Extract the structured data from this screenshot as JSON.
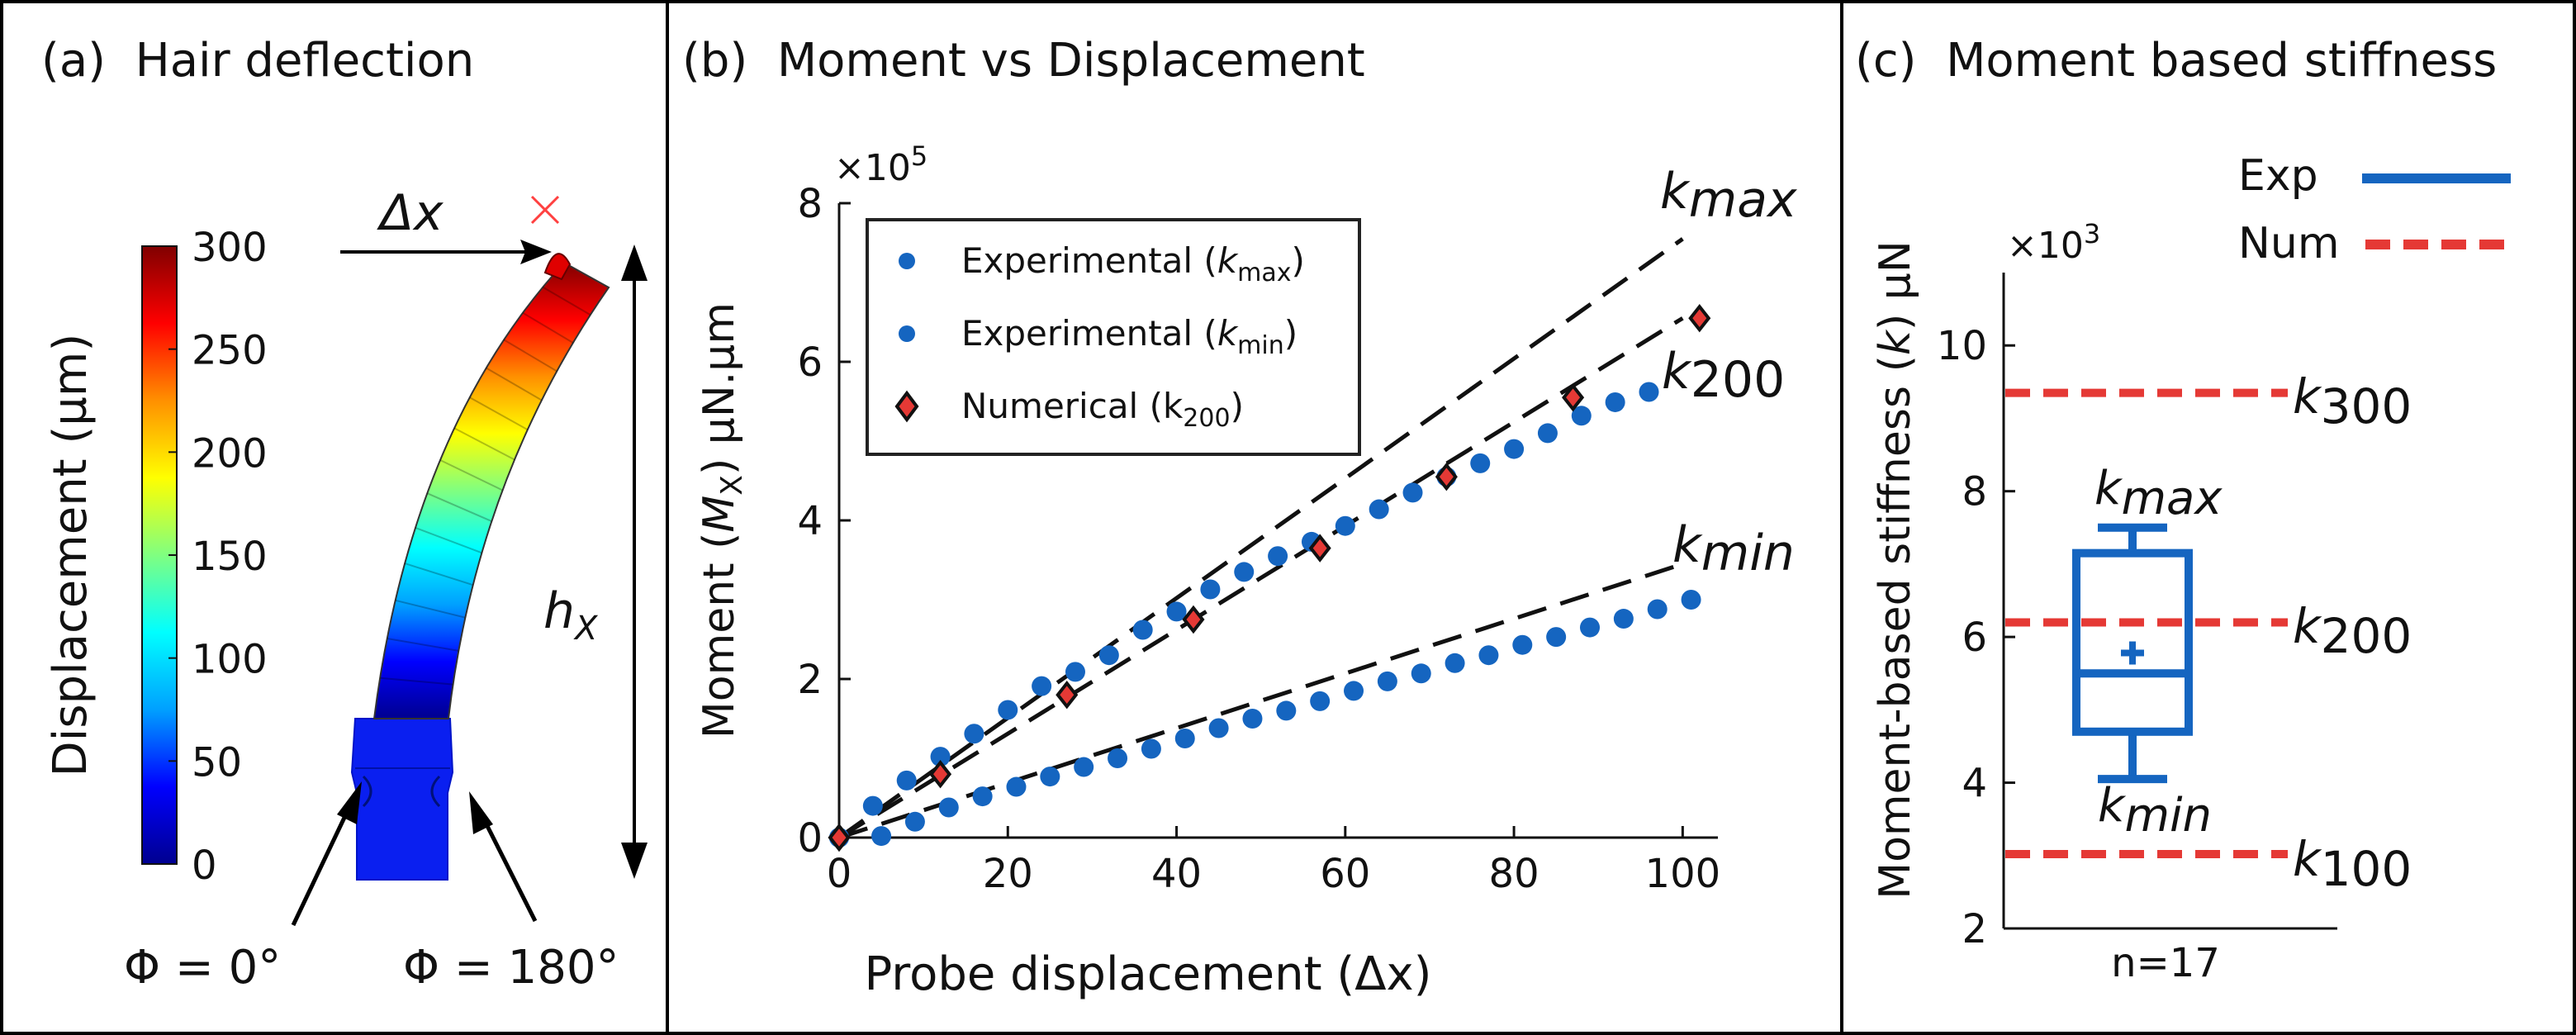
{
  "panel_a": {
    "title": "(a)  Hair deflection",
    "colorbar": {
      "label": "Displacement (µm)",
      "ticks": [
        "0",
        "50",
        "100",
        "150",
        "200",
        "250",
        "300"
      ],
      "min": 0,
      "max": 300,
      "colors": [
        "#00008f",
        "#0000ff",
        "#00a0ff",
        "#00ffff",
        "#80ff80",
        "#ffff00",
        "#ff9000",
        "#ff0000",
        "#800000"
      ]
    },
    "delta_x_label": "Δx",
    "h_label": "h",
    "h_sub": "X",
    "phi0_label": "Φ = 0°",
    "phi180_label": "Φ = 180°",
    "marker_color": "#ff4040"
  },
  "panel_b": {
    "title": "(b)  Moment vs Displacement",
    "exp_color": "#1565c0",
    "num_color": "#e53935",
    "legend_items": [
      {
        "prefix": "Experimental (",
        "sym": "k",
        "sub": "max",
        "suffix": ")"
      },
      {
        "prefix": "Experimental (",
        "sym": "k",
        "sub": "min",
        "suffix": ")"
      },
      {
        "prefix": "Numerical (k",
        "sym": "",
        "sub": "200",
        "suffix": ")"
      }
    ],
    "line_labels": [
      {
        "sym": "k",
        "sub": "max"
      },
      {
        "sym": "k",
        "sub": "200"
      },
      {
        "sym": "k",
        "sub": "min"
      }
    ]
  },
  "panel_c": {
    "title": "(c)  Moment based stiffness",
    "legend_exp": "Exp",
    "legend_num": "Num",
    "box_color": "#1565c0",
    "ref_color": "#e53935",
    "ref_labels": [
      {
        "sym": "k",
        "sub": "300"
      },
      {
        "sym": "k",
        "sub": "200"
      },
      {
        "sym": "k",
        "sub": "100"
      }
    ],
    "box_labels": [
      {
        "sym": "k",
        "sub": "max"
      },
      {
        "sym": "k",
        "sub": "min"
      }
    ]
  },
  "chart_data": [
    {
      "type": "scatter",
      "title": "Moment vs Displacement",
      "xlabel": "Probe displacement (Δx)",
      "ylabel_prefix": "Moment (",
      "ylabel_sym": "M",
      "ylabel_sub": "X",
      "ylabel_suffix": ") µN.µm",
      "multiplier": "×10",
      "multiplier_exp": "5",
      "xlim": [
        0,
        103
      ],
      "ylim": [
        0,
        8
      ],
      "xticks": [
        0,
        20,
        40,
        60,
        80,
        100
      ],
      "yticks": [
        0,
        2,
        4,
        6,
        8
      ],
      "series": [
        {
          "name": "Experimental (kmax)",
          "marker": "circle",
          "x": [
            0,
            4,
            8,
            12,
            16,
            20,
            24,
            28,
            32,
            36,
            40,
            44,
            48,
            52,
            56,
            60,
            64,
            68,
            72,
            76,
            80,
            84,
            88,
            92,
            96
          ],
          "y": [
            0.0,
            0.4,
            0.72,
            1.02,
            1.31,
            1.61,
            1.91,
            2.09,
            2.3,
            2.62,
            2.85,
            3.13,
            3.35,
            3.55,
            3.73,
            3.93,
            4.14,
            4.35,
            4.55,
            4.72,
            4.9,
            5.1,
            5.32,
            5.49,
            5.62
          ]
        },
        {
          "name": "Experimental (kmin)",
          "marker": "circle",
          "x": [
            0,
            5,
            9,
            13,
            17,
            21,
            25,
            29,
            33,
            37,
            41,
            45,
            49,
            53,
            57,
            61,
            65,
            69,
            73,
            77,
            81,
            85,
            89,
            93,
            97,
            101
          ],
          "y": [
            0.0,
            0.02,
            0.2,
            0.38,
            0.52,
            0.64,
            0.77,
            0.89,
            1.0,
            1.12,
            1.25,
            1.38,
            1.5,
            1.6,
            1.72,
            1.85,
            1.97,
            2.07,
            2.2,
            2.3,
            2.43,
            2.53,
            2.65,
            2.76,
            2.88,
            3.0
          ]
        },
        {
          "name": "Numerical (k200)",
          "marker": "diamond",
          "x": [
            0,
            12,
            27,
            42,
            57,
            72,
            87,
            102
          ],
          "y": [
            0.0,
            0.8,
            1.8,
            2.75,
            3.65,
            4.55,
            5.55,
            6.55
          ]
        },
        {
          "name": "kmax",
          "line": "dashed",
          "x": [
            0,
            100
          ],
          "y": [
            0.0,
            7.55
          ]
        },
        {
          "name": "k200",
          "line": "dashed",
          "x": [
            0,
            100
          ],
          "y": [
            0.0,
            6.55
          ]
        },
        {
          "name": "kmin",
          "line": "dashed",
          "x": [
            0,
            100
          ],
          "y": [
            0.0,
            3.45
          ]
        }
      ]
    },
    {
      "type": "box",
      "title": "Moment based stiffness",
      "ylabel_prefix": "Moment-based stiffness (",
      "ylabel_sym": "k",
      "ylabel_suffix": ") µN",
      "multiplier": "×10",
      "multiplier_exp": "3",
      "xlabel": "n=17",
      "ylim": [
        2,
        11
      ],
      "yticks": [
        2,
        4,
        6,
        8,
        10
      ],
      "box": {
        "whisker_low": 4.05,
        "q1": 4.7,
        "median": 5.5,
        "q3": 7.15,
        "whisker_high": 7.5,
        "mean": 5.78,
        "n": 17
      },
      "reference_lines": [
        {
          "name": "k300",
          "y": 9.35
        },
        {
          "name": "k200",
          "y": 6.2
        },
        {
          "name": "k100",
          "y": 3.02
        }
      ]
    }
  ]
}
